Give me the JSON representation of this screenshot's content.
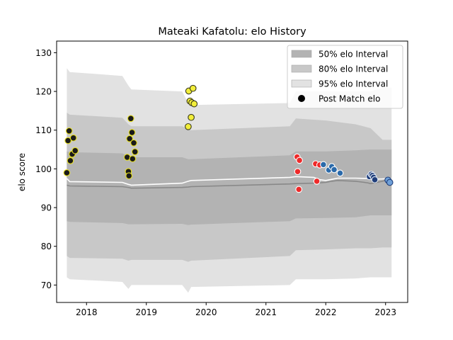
{
  "chart_data": {
    "type": "scatter",
    "title": "Mateaki Kafatolu: elo History",
    "xlabel": "",
    "ylabel": "elo score",
    "xlim": [
      2017.5,
      2023.37
    ],
    "ylim": [
      65.5,
      133
    ],
    "x_ticks": [
      2018,
      2019,
      2020,
      2021,
      2022,
      2023
    ],
    "x_tick_labels": [
      "2018",
      "2019",
      "2020",
      "2021",
      "2022",
      "2023"
    ],
    "y_ticks": [
      70,
      80,
      90,
      100,
      110,
      120,
      130
    ],
    "y_tick_labels": [
      "70",
      "80",
      "90",
      "100",
      "110",
      "120",
      "130"
    ],
    "grid": false,
    "legend_position": "top-right",
    "legend": [
      {
        "label": "50% elo Interval",
        "kind": "patch",
        "color": "#b3b3b3"
      },
      {
        "label": "80% elo Interval",
        "kind": "patch",
        "color": "#c8c8c8"
      },
      {
        "label": "95% elo Interval",
        "kind": "patch",
        "color": "#e2e2e2"
      },
      {
        "label": "Post Match elo",
        "kind": "marker",
        "color": "#000000"
      }
    ],
    "bands": [
      {
        "name": "95% elo Interval",
        "color": "#e2e2e2",
        "x": [
          2017.67,
          2017.72,
          2018.6,
          2018.7,
          2018.75,
          2019.6,
          2019.7,
          2019.75,
          2021.4,
          2021.5,
          2022,
          2022.5,
          2022.75,
          2022.95,
          2023.1
        ],
        "upper": [
          126,
          125,
          124,
          121.5,
          120.5,
          120,
          117,
          116.5,
          117,
          120,
          120,
          120,
          120,
          121,
          121
        ],
        "lower": [
          72,
          71.5,
          70.8,
          69,
          70,
          70,
          68,
          69.5,
          70,
          71.5,
          71.5,
          71.7,
          72,
          72,
          72
        ]
      },
      {
        "name": "80% elo Interval",
        "color": "#c8c8c8",
        "x": [
          2017.67,
          2017.72,
          2018.6,
          2018.7,
          2018.75,
          2019.6,
          2019.7,
          2019.75,
          2021.4,
          2021.5,
          2022,
          2022.5,
          2022.75,
          2022.95,
          2023.1
        ],
        "upper": [
          114.5,
          114,
          113.2,
          111.5,
          111,
          111,
          110.2,
          110,
          111,
          113,
          112.5,
          111.5,
          110.5,
          107.5,
          107.5
        ],
        "lower": [
          77.5,
          77,
          76.8,
          76.3,
          76.5,
          76.5,
          76,
          76.3,
          77.5,
          79,
          79.2,
          79.5,
          79.5,
          79.7,
          79.7
        ]
      },
      {
        "name": "50% elo Interval",
        "color": "#b3b3b3",
        "x": [
          2017.67,
          2017.72,
          2018.6,
          2018.7,
          2018.75,
          2019.6,
          2019.7,
          2019.75,
          2021.4,
          2021.5,
          2022,
          2022.5,
          2022.75,
          2022.95,
          2023.1
        ],
        "upper": [
          104.5,
          104.3,
          104,
          103.2,
          103,
          103,
          102.5,
          102.5,
          103.5,
          104.5,
          104.5,
          104.8,
          105,
          105,
          105
        ],
        "lower": [
          86.5,
          86.3,
          86,
          85.7,
          85.7,
          85.8,
          85.5,
          85.6,
          86.5,
          87.2,
          87.3,
          87.5,
          88,
          88,
          88
        ]
      }
    ],
    "lines": [
      {
        "role": "mean",
        "color": "#ffffff",
        "x": [
          2017.67,
          2017.72,
          2018.6,
          2018.7,
          2018.75,
          2019.6,
          2019.7,
          2019.75,
          2021.4,
          2021.5,
          2021.8,
          2021.9,
          2022,
          2022.1,
          2022.2,
          2022.5,
          2022.7,
          2022.75,
          2022.95,
          2023.05,
          2023.1
        ],
        "y": [
          97.5,
          96.7,
          96.5,
          96,
          95.8,
          96.3,
          96.8,
          97,
          97.8,
          98,
          97.8,
          97.2,
          97,
          97.3,
          97.6,
          97.6,
          97.5,
          97.3,
          97.4,
          97.5,
          97.5
        ]
      },
      {
        "role": "median",
        "color": "#888888",
        "x": [
          2017.67,
          2017.72,
          2018.6,
          2018.7,
          2018.75,
          2019.6,
          2019.7,
          2019.75,
          2021.4,
          2021.5,
          2021.8,
          2021.9,
          2022,
          2022.1,
          2022.2,
          2022.5,
          2022.7,
          2022.75,
          2022.95,
          2023.05,
          2023.1
        ],
        "y": [
          95.8,
          95.6,
          95.4,
          95.2,
          95,
          95.2,
          95.3,
          95.4,
          96.1,
          96.2,
          96.3,
          96.4,
          96.5,
          96.8,
          97,
          96.8,
          96.4,
          96.2,
          96.8,
          97.3,
          97.3
        ]
      }
    ],
    "series": [
      {
        "fill": "#1a1a1a",
        "edge": "#e8e020",
        "points": [
          [
            2017.67,
            99
          ],
          [
            2017.69,
            107.3
          ],
          [
            2017.71,
            109.8
          ],
          [
            2017.73,
            102.1
          ],
          [
            2017.76,
            103.8
          ],
          [
            2017.78,
            108
          ],
          [
            2017.81,
            104.7
          ],
          [
            2018.68,
            103
          ],
          [
            2018.7,
            99.3
          ],
          [
            2018.71,
            98.2
          ],
          [
            2018.72,
            107.8
          ],
          [
            2018.74,
            113
          ],
          [
            2018.76,
            109.4
          ],
          [
            2018.77,
            102.6
          ],
          [
            2018.79,
            106.7
          ],
          [
            2018.81,
            104.4
          ]
        ]
      },
      {
        "fill": "#f2ee3a",
        "edge": "#3a3a1a",
        "points": [
          [
            2019.7,
            110.9
          ],
          [
            2019.71,
            120.1
          ],
          [
            2019.73,
            117.5
          ],
          [
            2019.75,
            113.3
          ],
          [
            2019.76,
            117.1
          ],
          [
            2019.78,
            120.8
          ],
          [
            2019.8,
            116.8
          ]
        ]
      },
      {
        "fill": "#ee2a2a",
        "edge": "#ffffff",
        "points": [
          [
            2021.52,
            103.1
          ],
          [
            2021.53,
            99.3
          ],
          [
            2021.55,
            94.7
          ],
          [
            2021.56,
            102.2
          ],
          [
            2021.83,
            101.3
          ],
          [
            2021.85,
            96.8
          ],
          [
            2021.9,
            101
          ]
        ]
      },
      {
        "fill": "#2b6aaa",
        "edge": "#ffffff",
        "points": [
          [
            2021.96,
            101.1
          ],
          [
            2022.05,
            99.7
          ],
          [
            2022.1,
            100.6
          ],
          [
            2022.14,
            99.8
          ],
          [
            2022.24,
            98.9
          ]
        ]
      },
      {
        "fill": "#1f3d7a",
        "edge": "#dfe7f2",
        "points": [
          [
            2022.73,
            98
          ],
          [
            2022.76,
            98.6
          ],
          [
            2022.78,
            98.3
          ],
          [
            2022.8,
            97.8
          ],
          [
            2022.82,
            97.2
          ]
        ]
      },
      {
        "fill": "#6fa0d8",
        "edge": "#1f3d7a",
        "points": [
          [
            2023.04,
            97.1
          ],
          [
            2023.07,
            96.5
          ]
        ]
      }
    ]
  }
}
